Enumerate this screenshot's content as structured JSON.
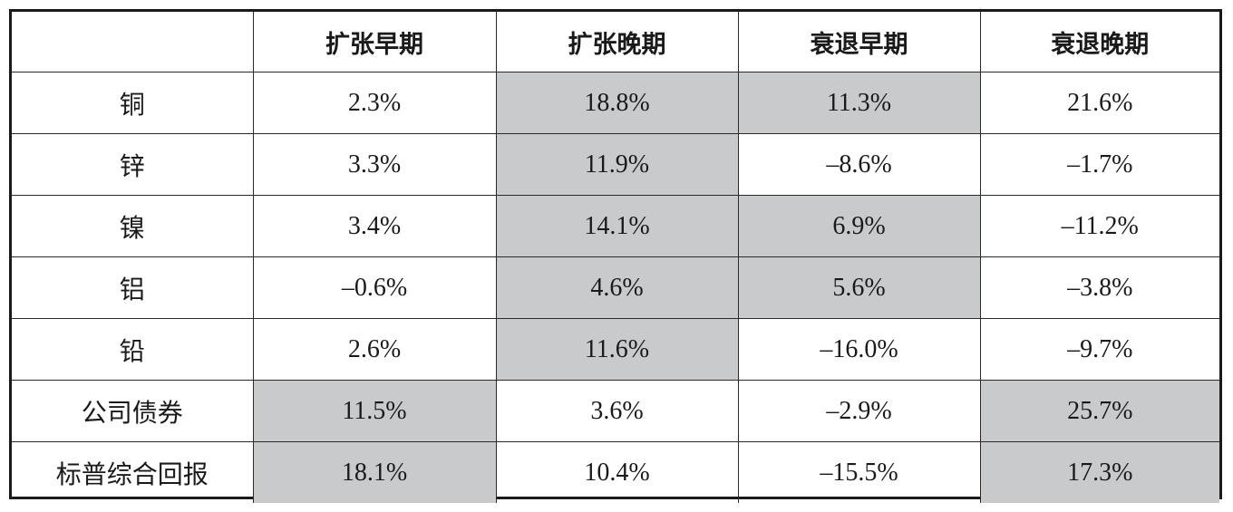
{
  "table": {
    "headers": [
      "",
      "扩张早期",
      "扩张晚期",
      "衰退早期",
      "衰退晚期"
    ],
    "rows": [
      {
        "label": "铜",
        "values": [
          "2.3%",
          "18.8%",
          "11.3%",
          "21.6%"
        ],
        "shaded": [
          false,
          true,
          true,
          false
        ]
      },
      {
        "label": "锌",
        "values": [
          "3.3%",
          "11.9%",
          "–8.6%",
          "–1.7%"
        ],
        "shaded": [
          false,
          true,
          false,
          false
        ]
      },
      {
        "label": "镍",
        "values": [
          "3.4%",
          "14.1%",
          "6.9%",
          "–11.2%"
        ],
        "shaded": [
          false,
          true,
          true,
          false
        ]
      },
      {
        "label": "铝",
        "values": [
          "–0.6%",
          "4.6%",
          "5.6%",
          "–3.8%"
        ],
        "shaded": [
          false,
          true,
          true,
          false
        ]
      },
      {
        "label": "铅",
        "values": [
          "2.6%",
          "11.6%",
          "–16.0%",
          "–9.7%"
        ],
        "shaded": [
          false,
          true,
          false,
          false
        ]
      },
      {
        "label": "公司债券",
        "values": [
          "11.5%",
          "3.6%",
          "–2.9%",
          "25.7%"
        ],
        "shaded": [
          true,
          false,
          false,
          true
        ]
      },
      {
        "label": "标普综合回报",
        "values": [
          "18.1%",
          "10.4%",
          "–15.5%",
          "17.3%"
        ],
        "shaded": [
          true,
          false,
          false,
          true
        ]
      }
    ],
    "shade_color": "#c9cacc"
  }
}
